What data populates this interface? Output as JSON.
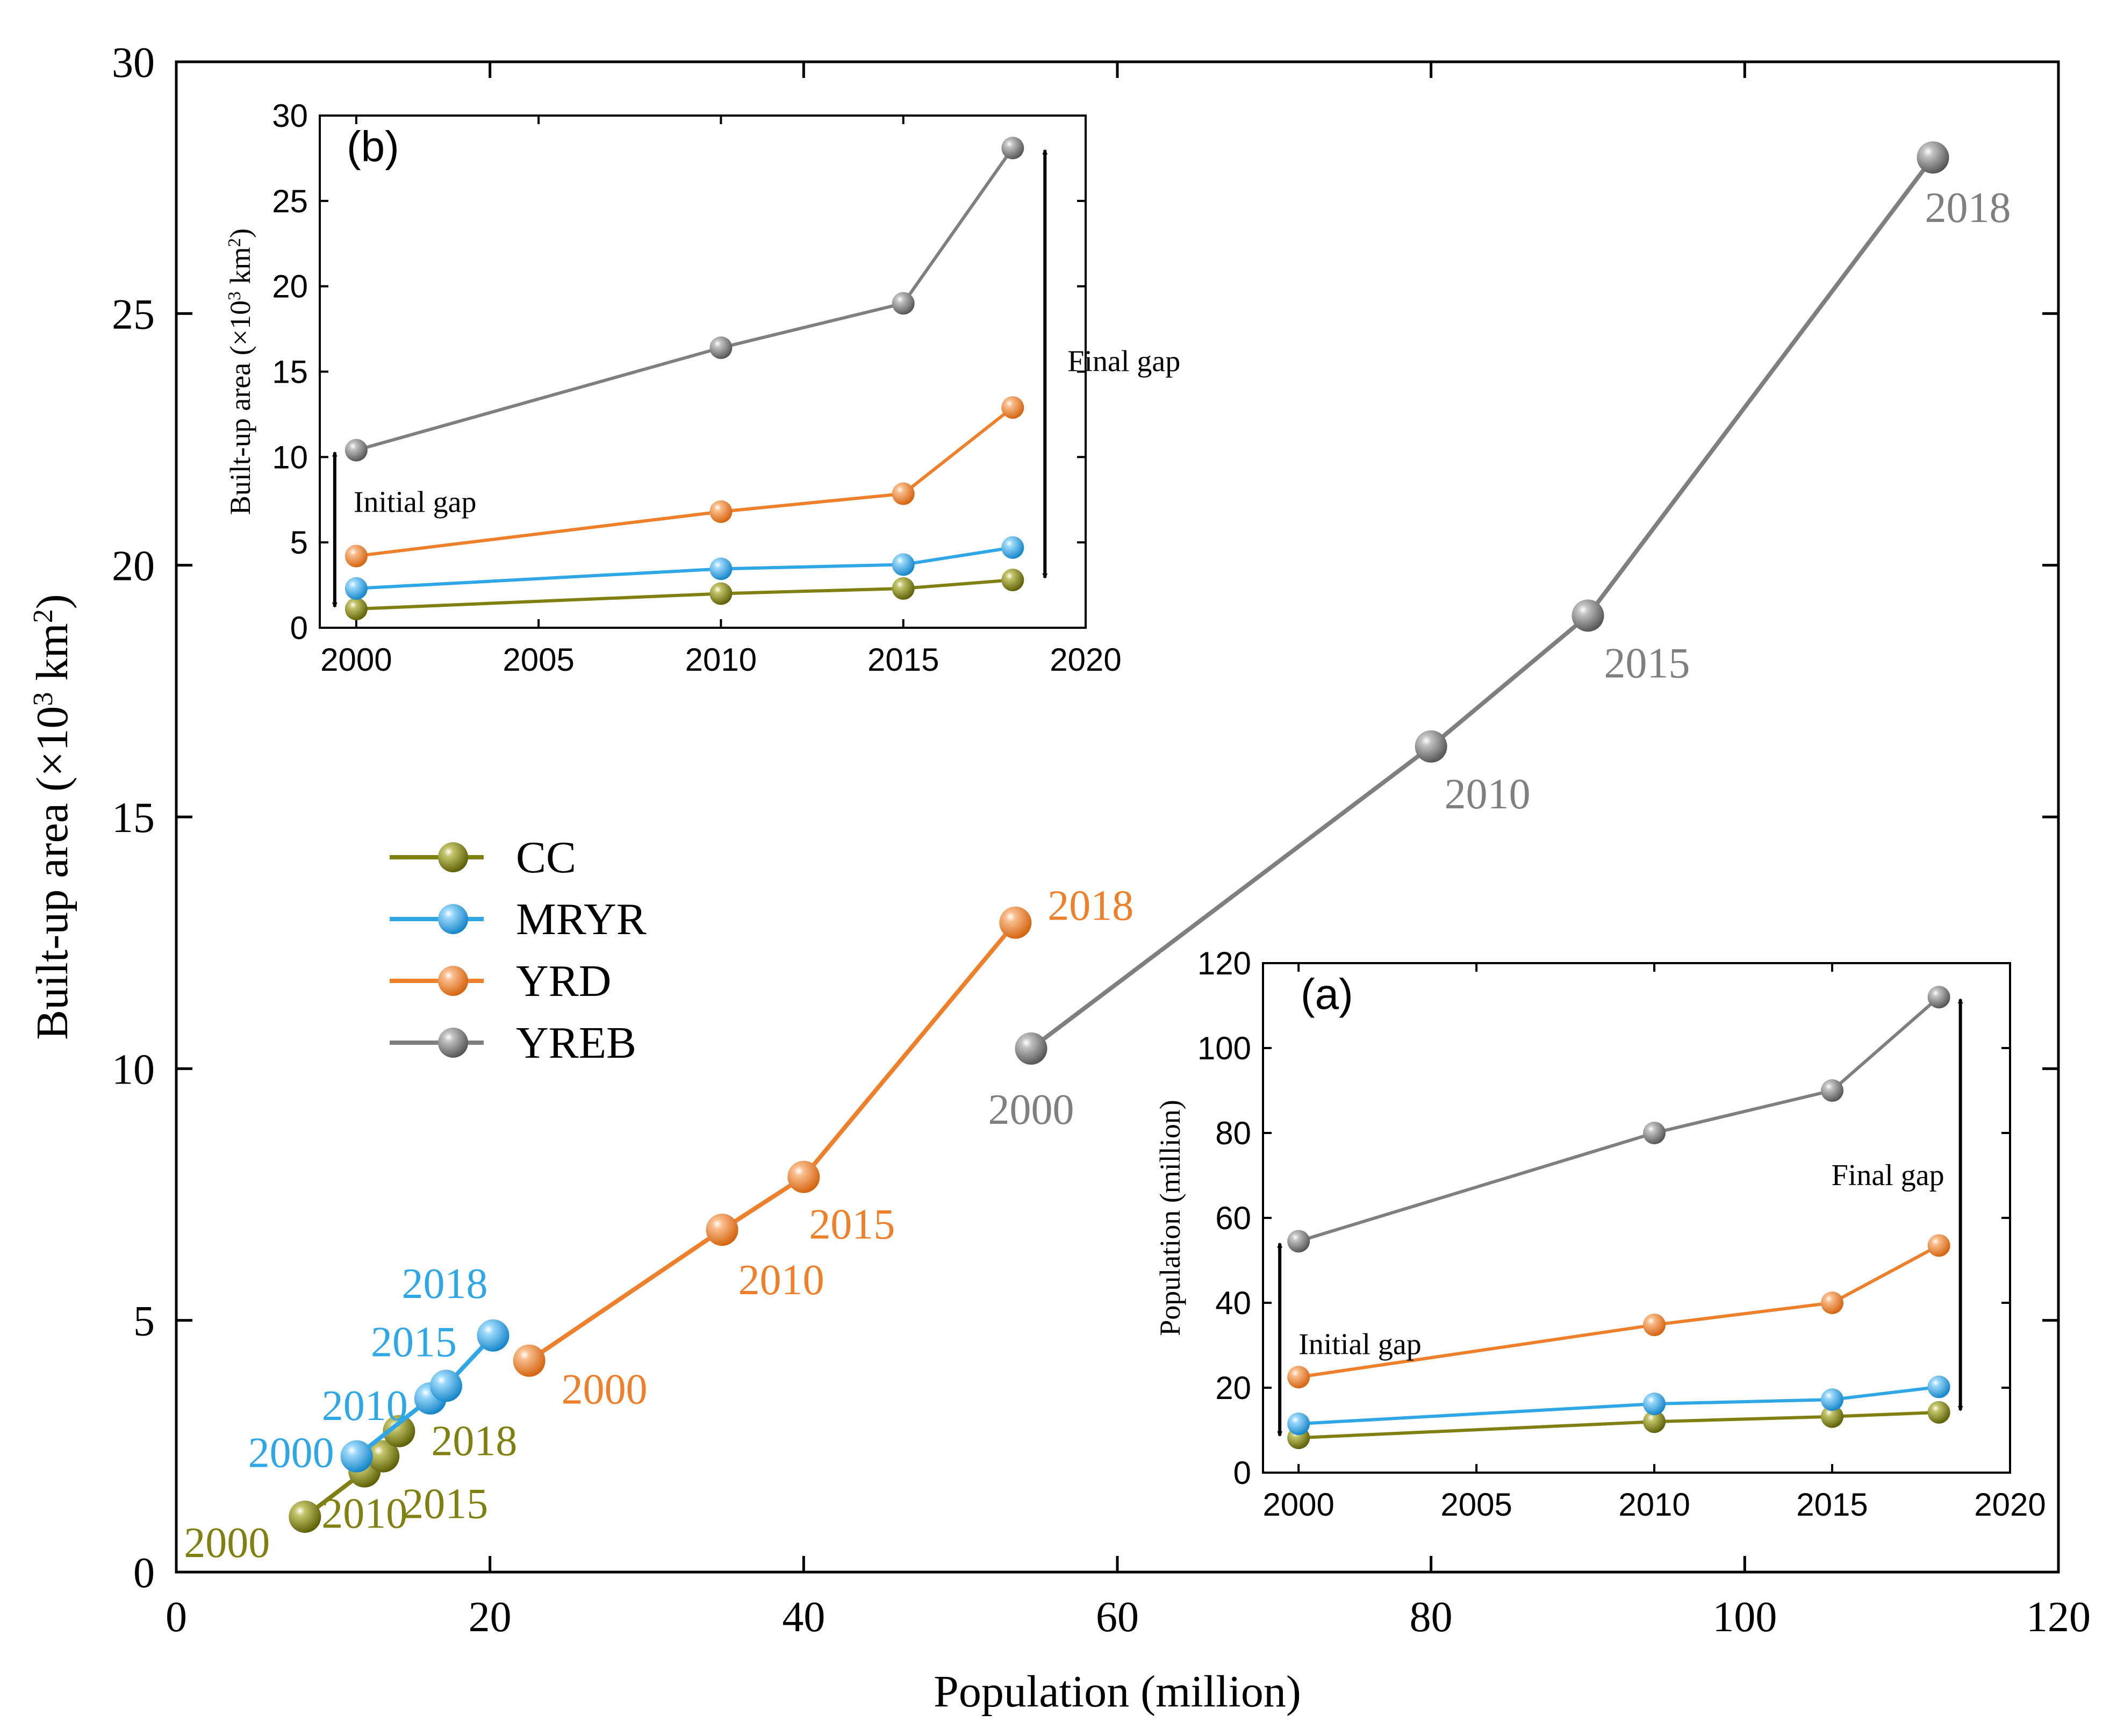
{
  "colors": {
    "CC": "#7f7f12",
    "MRYR": "#2fa6e6",
    "YRD": "#ee7f2b",
    "YREB": "#7f7f7f",
    "axis": "#000000"
  },
  "chart_data": [
    {
      "id": "main",
      "type": "scatter",
      "xlabel": "Population (million)",
      "ylabel": "Built-up area (×10³ km²)",
      "ylabel_parts": {
        "pre": "Built-up area (×10",
        "exp1": "3",
        "mid": " km",
        "exp2": "2",
        "post": ")"
      },
      "xlim": [
        0,
        120
      ],
      "ylim": [
        0,
        30
      ],
      "xticks": [
        0,
        20,
        40,
        60,
        80,
        100,
        120
      ],
      "yticks": [
        0,
        5,
        10,
        15,
        20,
        25,
        30
      ],
      "legend_position": "middle-left",
      "series": [
        {
          "name": "CC",
          "points": [
            {
              "year": "2000",
              "x": 8.2,
              "y": 1.1
            },
            {
              "year": "2010",
              "x": 12.0,
              "y": 2.0
            },
            {
              "year": "2015",
              "x": 13.2,
              "y": 2.3
            },
            {
              "year": "2018",
              "x": 14.2,
              "y": 2.8
            }
          ]
        },
        {
          "name": "MRYR",
          "points": [
            {
              "year": "2000",
              "x": 11.5,
              "y": 2.3
            },
            {
              "year": "2010",
              "x": 16.2,
              "y": 3.45
            },
            {
              "year": "2015",
              "x": 17.2,
              "y": 3.7
            },
            {
              "year": "2018",
              "x": 20.2,
              "y": 4.7
            }
          ]
        },
        {
          "name": "YRD",
          "points": [
            {
              "year": "2000",
              "x": 22.5,
              "y": 4.2
            },
            {
              "year": "2010",
              "x": 34.8,
              "y": 6.8
            },
            {
              "year": "2015",
              "x": 40.0,
              "y": 7.85
            },
            {
              "year": "2018",
              "x": 53.5,
              "y": 12.9
            }
          ]
        },
        {
          "name": "YREB",
          "points": [
            {
              "year": "2000",
              "x": 54.5,
              "y": 10.4
            },
            {
              "year": "2010",
              "x": 80.0,
              "y": 16.4
            },
            {
              "year": "2015",
              "x": 90.0,
              "y": 19.0
            },
            {
              "year": "2018",
              "x": 112.0,
              "y": 28.1
            }
          ]
        }
      ]
    },
    {
      "id": "inset-b",
      "type": "line",
      "panel_label": "(b)",
      "xlabel": "",
      "ylabel": "Built-up area (×10³ km²)",
      "ylabel_parts": {
        "pre": "Built-up area (×10",
        "exp1": "3",
        "mid": " km",
        "exp2": "2",
        "post": ")"
      },
      "xlim": [
        1999,
        2020
      ],
      "ylim": [
        0,
        30
      ],
      "xticks": [
        2000,
        2005,
        2010,
        2015,
        2020
      ],
      "yticks": [
        0,
        5,
        10,
        15,
        20,
        25,
        30
      ],
      "x": [
        2000,
        2010,
        2015,
        2018
      ],
      "series": [
        {
          "name": "CC",
          "values": [
            1.1,
            2.0,
            2.3,
            2.8
          ]
        },
        {
          "name": "MRYR",
          "values": [
            2.3,
            3.45,
            3.7,
            4.7
          ]
        },
        {
          "name": "YRD",
          "values": [
            4.2,
            6.8,
            7.85,
            12.9
          ]
        },
        {
          "name": "YREB",
          "values": [
            10.4,
            16.4,
            19.0,
            28.1
          ]
        }
      ],
      "annotations": [
        {
          "text": "Initial gap",
          "x": 2000,
          "from": 1.1,
          "to": 10.4
        },
        {
          "text": "Final gap",
          "x": 2018,
          "from": 2.8,
          "to": 28.1
        }
      ]
    },
    {
      "id": "inset-a",
      "type": "line",
      "panel_label": "(a)",
      "xlabel": "",
      "ylabel": "Population (million)",
      "xlim": [
        1999,
        2020
      ],
      "ylim": [
        0,
        120
      ],
      "xticks": [
        2000,
        2005,
        2010,
        2015,
        2020
      ],
      "yticks": [
        0,
        20,
        40,
        60,
        80,
        100,
        120
      ],
      "x": [
        2000,
        2010,
        2015,
        2018
      ],
      "series": [
        {
          "name": "CC",
          "values": [
            8.2,
            12.0,
            13.2,
            14.2
          ]
        },
        {
          "name": "MRYR",
          "values": [
            11.5,
            16.2,
            17.2,
            20.2
          ]
        },
        {
          "name": "YRD",
          "values": [
            22.5,
            34.8,
            40.0,
            53.5
          ]
        },
        {
          "name": "YREB",
          "values": [
            54.5,
            80.0,
            90.0,
            112.0
          ]
        }
      ],
      "annotations": [
        {
          "text": "Initial gap",
          "x": 2000,
          "from": 8.2,
          "to": 54.5
        },
        {
          "text": "Final gap",
          "x": 2018,
          "from": 14.2,
          "to": 112.0
        }
      ]
    }
  ]
}
